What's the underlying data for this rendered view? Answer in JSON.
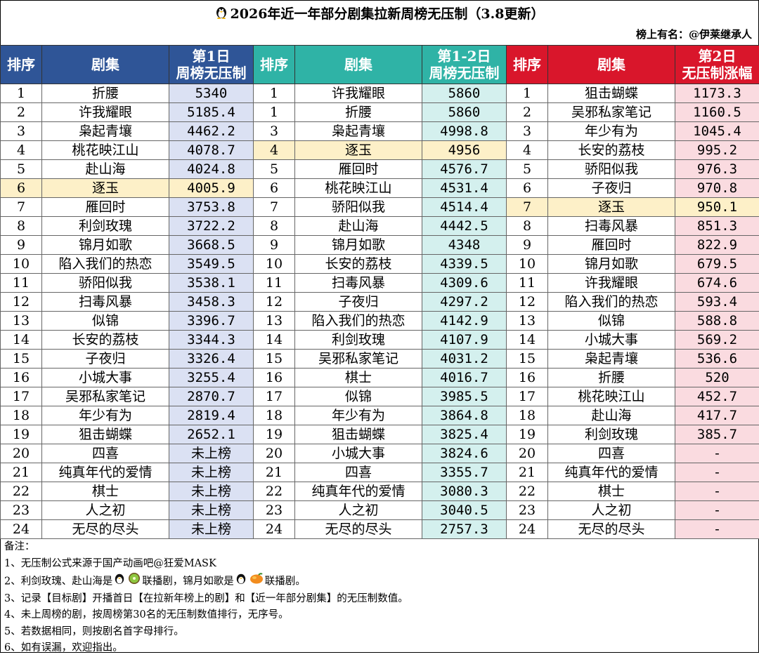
{
  "title": "2026年近一年部分剧集拉新周榜无压制（3.8更新）",
  "owner": "榜上有名：@伊莱继承人",
  "headers": {
    "rank": "排序",
    "show": "剧集",
    "v1_line1": "第1日",
    "v1_line2": "周榜无压制",
    "v2_line1": "第1-2日",
    "v2_line2": "周榜无压制",
    "v3_line1": "第2日",
    "v3_line2": "无压制涨幅"
  },
  "table1": [
    {
      "rank": "1",
      "name": "折腰",
      "value": "5340"
    },
    {
      "rank": "2",
      "name": "许我耀眼",
      "value": "5185.4"
    },
    {
      "rank": "3",
      "name": "枭起青壤",
      "value": "4462.2"
    },
    {
      "rank": "4",
      "name": "桃花映江山",
      "value": "4078.7"
    },
    {
      "rank": "5",
      "name": "赴山海",
      "value": "4024.8"
    },
    {
      "rank": "6",
      "name": "逐玉",
      "value": "4005.9",
      "highlight": true
    },
    {
      "rank": "7",
      "name": "雁回时",
      "value": "3753.8"
    },
    {
      "rank": "8",
      "name": "利剑玫瑰",
      "value": "3722.2"
    },
    {
      "rank": "9",
      "name": "锦月如歌",
      "value": "3668.5"
    },
    {
      "rank": "10",
      "name": "陷入我们的热恋",
      "value": "3549.5"
    },
    {
      "rank": "11",
      "name": "骄阳似我",
      "value": "3538.1"
    },
    {
      "rank": "12",
      "name": "扫毒风暴",
      "value": "3458.3"
    },
    {
      "rank": "13",
      "name": "似锦",
      "value": "3396.7"
    },
    {
      "rank": "14",
      "name": "长安的荔枝",
      "value": "3344.3"
    },
    {
      "rank": "15",
      "name": "子夜归",
      "value": "3326.4"
    },
    {
      "rank": "16",
      "name": "小城大事",
      "value": "3255.4"
    },
    {
      "rank": "17",
      "name": "吴邪私家笔记",
      "value": "2870.7"
    },
    {
      "rank": "18",
      "name": "年少有为",
      "value": "2819.4"
    },
    {
      "rank": "19",
      "name": "狙击蝴蝶",
      "value": "2652.1"
    },
    {
      "rank": "20",
      "name": "四喜",
      "value": "未上榜"
    },
    {
      "rank": "21",
      "name": "纯真年代的爱情",
      "value": "未上榜"
    },
    {
      "rank": "22",
      "name": "棋士",
      "value": "未上榜"
    },
    {
      "rank": "23",
      "name": "人之初",
      "value": "未上榜"
    },
    {
      "rank": "24",
      "name": "无尽的尽头",
      "value": "未上榜"
    }
  ],
  "table2": [
    {
      "rank": "1",
      "name": "许我耀眼",
      "value": "5860"
    },
    {
      "rank": "1",
      "name": "折腰",
      "value": "5860"
    },
    {
      "rank": "3",
      "name": "枭起青壤",
      "value": "4998.8"
    },
    {
      "rank": "4",
      "name": "逐玉",
      "value": "4956",
      "highlight": true
    },
    {
      "rank": "5",
      "name": "雁回时",
      "value": "4576.7"
    },
    {
      "rank": "6",
      "name": "桃花映江山",
      "value": "4531.4"
    },
    {
      "rank": "7",
      "name": "骄阳似我",
      "value": "4514.4"
    },
    {
      "rank": "8",
      "name": "赴山海",
      "value": "4442.5"
    },
    {
      "rank": "9",
      "name": "锦月如歌",
      "value": "4348"
    },
    {
      "rank": "10",
      "name": "长安的荔枝",
      "value": "4339.5"
    },
    {
      "rank": "11",
      "name": "扫毒风暴",
      "value": "4309.6"
    },
    {
      "rank": "12",
      "name": "子夜归",
      "value": "4297.2"
    },
    {
      "rank": "13",
      "name": "陷入我们的热恋",
      "value": "4142.9"
    },
    {
      "rank": "14",
      "name": "利剑玫瑰",
      "value": "4107.9"
    },
    {
      "rank": "15",
      "name": "吴邪私家笔记",
      "value": "4031.2"
    },
    {
      "rank": "16",
      "name": "棋士",
      "value": "4016.7"
    },
    {
      "rank": "17",
      "name": "似锦",
      "value": "3985.5"
    },
    {
      "rank": "18",
      "name": "年少有为",
      "value": "3864.8"
    },
    {
      "rank": "19",
      "name": "狙击蝴蝶",
      "value": "3825.4"
    },
    {
      "rank": "20",
      "name": "小城大事",
      "value": "3824.6"
    },
    {
      "rank": "21",
      "name": "四喜",
      "value": "3355.7"
    },
    {
      "rank": "22",
      "name": "纯真年代的爱情",
      "value": "3080.3"
    },
    {
      "rank": "23",
      "name": "人之初",
      "value": "3040.5"
    },
    {
      "rank": "24",
      "name": "无尽的尽头",
      "value": "2757.3"
    }
  ],
  "table3": [
    {
      "rank": "1",
      "name": "狙击蝴蝶",
      "value": "1173.3"
    },
    {
      "rank": "2",
      "name": "吴邪私家笔记",
      "value": "1160.5"
    },
    {
      "rank": "3",
      "name": "年少有为",
      "value": "1045.4"
    },
    {
      "rank": "4",
      "name": "长安的荔枝",
      "value": "995.2"
    },
    {
      "rank": "5",
      "name": "骄阳似我",
      "value": "976.3"
    },
    {
      "rank": "6",
      "name": "子夜归",
      "value": "970.8"
    },
    {
      "rank": "7",
      "name": "逐玉",
      "value": "950.1",
      "highlight": true
    },
    {
      "rank": "8",
      "name": "扫毒风暴",
      "value": "851.3"
    },
    {
      "rank": "9",
      "name": "雁回时",
      "value": "822.9"
    },
    {
      "rank": "10",
      "name": "锦月如歌",
      "value": "679.5"
    },
    {
      "rank": "11",
      "name": "许我耀眼",
      "value": "674.6"
    },
    {
      "rank": "12",
      "name": "陷入我们的热恋",
      "value": "593.4"
    },
    {
      "rank": "13",
      "name": "似锦",
      "value": "588.8"
    },
    {
      "rank": "14",
      "name": "小城大事",
      "value": "569.2"
    },
    {
      "rank": "15",
      "name": "枭起青壤",
      "value": "536.6"
    },
    {
      "rank": "16",
      "name": "折腰",
      "value": "520"
    },
    {
      "rank": "17",
      "name": "桃花映江山",
      "value": "452.7"
    },
    {
      "rank": "18",
      "name": "赴山海",
      "value": "417.7"
    },
    {
      "rank": "19",
      "name": "利剑玫瑰",
      "value": "385.7"
    },
    {
      "rank": "20",
      "name": "四喜",
      "value": "-"
    },
    {
      "rank": "21",
      "name": "纯真年代的爱情",
      "value": "-"
    },
    {
      "rank": "22",
      "name": "棋士",
      "value": "-"
    },
    {
      "rank": "23",
      "name": "人之初",
      "value": "-"
    },
    {
      "rank": "24",
      "name": "无尽的尽头",
      "value": "-"
    }
  ],
  "notes": {
    "heading": "备注：",
    "n1": "1、无压制公式来源于国产动画吧@狂爱MASK",
    "n2_a": "2、利剑玫瑰、赴山海是",
    "n2_b": "联播剧，锦月如歌是",
    "n2_c": "联播剧。",
    "n3": "3、记录【目标剧】开播首日【在拉新年榜上的剧】和【近一年部分剧集】的无压制数值。",
    "n4": "4、未上周榜的剧，按周榜第30名的无压制数值排行，无序号。",
    "n5": "5、若数据相同，则按剧名首字母排行。",
    "n6": "6、如有误漏，欢迎指出。"
  },
  "icons": {
    "title_icon": "penguin-icon",
    "note_icons_1": [
      "penguin-icon",
      "kiwi-icon"
    ],
    "note_icons_2": [
      "penguin-icon",
      "mango-icon"
    ]
  },
  "colors": {
    "blue_header": "#2f5597",
    "teal_header": "#2fb3a6",
    "red_header": "#d9162b",
    "blue_cell": "#dbe1f3",
    "teal_cell": "#d4f0ee",
    "pink_cell": "#fadbe0",
    "highlight": "#fdf0c8"
  }
}
